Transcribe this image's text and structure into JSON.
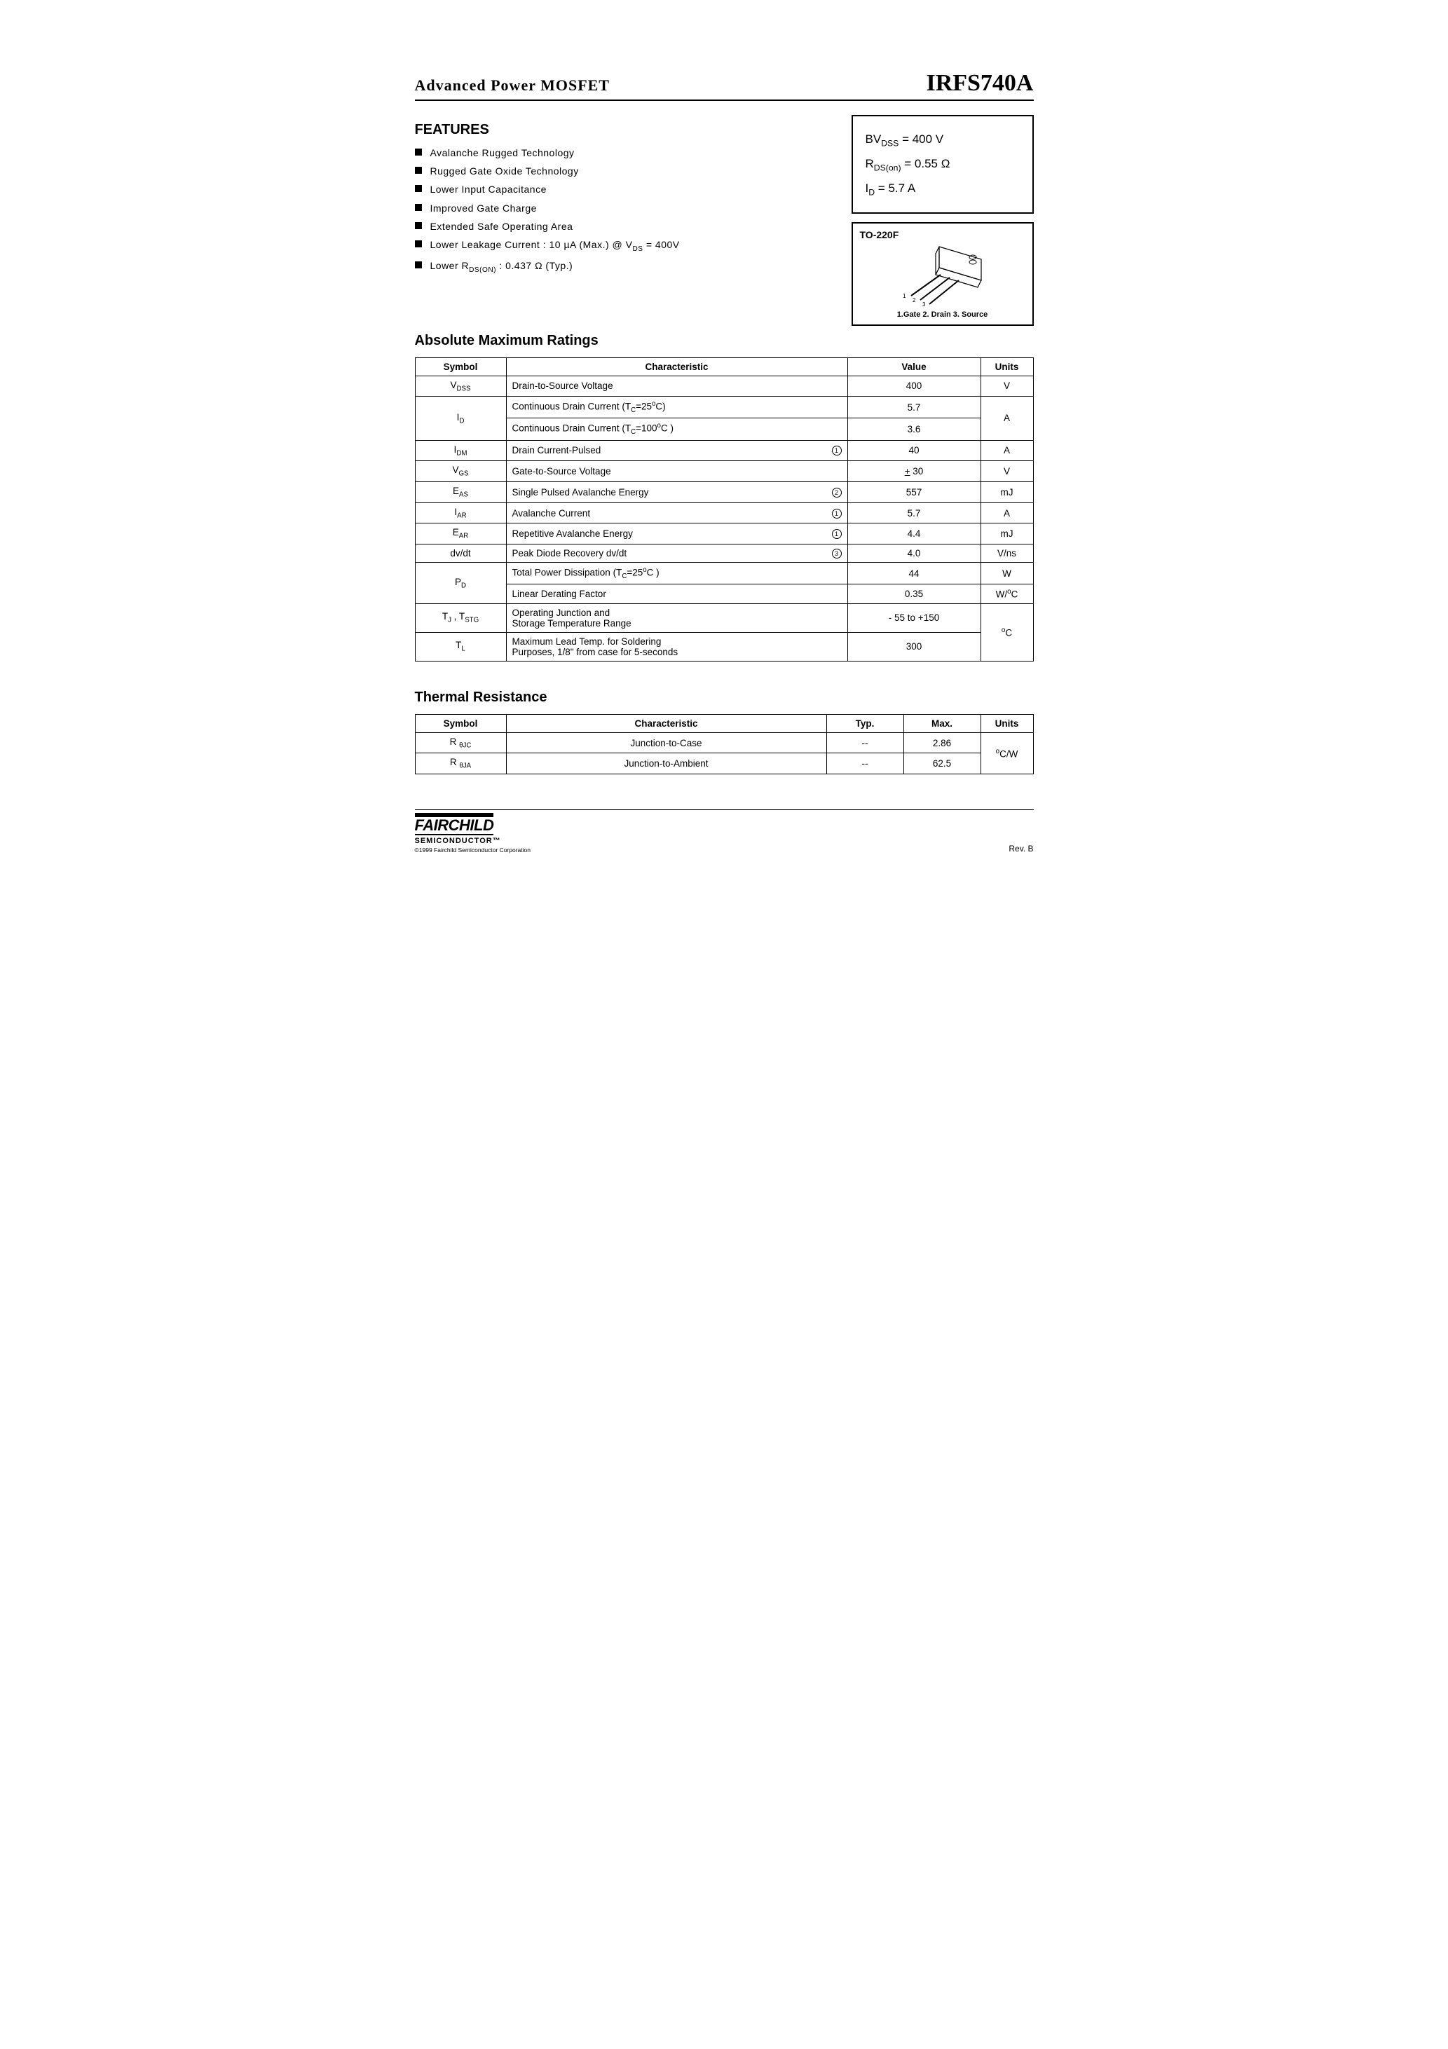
{
  "header": {
    "left": "Advanced  Power  MOSFET",
    "right": "IRFS740A"
  },
  "features": {
    "heading": "FEATURES",
    "items": [
      "Avalanche  Rugged  Technology",
      "Rugged  Gate  Oxide  Technology",
      "Lower  Input  Capacitance",
      "Improved  Gate  Charge",
      "Extended  Safe  Operating  Area",
      "Lower  Leakage  Current  :  10 µA (Max.)  @   V<sub>DS</sub> = 400V",
      "Lower  R<sub>DS(ON)</sub>  :  0.437 Ω (Typ.)"
    ]
  },
  "spec_box": {
    "lines": [
      "BV<sub>DSS</sub>  =  400 V",
      "R<sub>DS(on)</sub>  =  0.55  Ω",
      "I<sub>D</sub>  =  5.7 A"
    ]
  },
  "package": {
    "title": "TO-220F",
    "pins": "1.Gate  2. Drain  3. Source"
  },
  "abs_max": {
    "heading": "Absolute  Maximum  Ratings",
    "columns": [
      "Symbol",
      "Characteristic",
      "Value",
      "Units"
    ],
    "rows": [
      {
        "symbol": "V<sub>DSS</sub>",
        "char": "Drain-to-Source  Voltage",
        "note": "",
        "value": "400",
        "units": "V",
        "sym_rowspan": 1,
        "units_rowspan": 1
      },
      {
        "symbol": "I<sub>D</sub>",
        "char": "Continuous  Drain  Current  (T<sub>C</sub>=25<sup>o</sup>C)",
        "note": "",
        "value": "5.7",
        "units": "A",
        "sym_rowspan": 2,
        "units_rowspan": 2
      },
      {
        "symbol": "",
        "char": "Continuous  Drain  Current  (T<sub>C</sub>=100<sup>o</sup>C )",
        "note": "",
        "value": "3.6",
        "units": "",
        "sym_rowspan": 0,
        "units_rowspan": 0
      },
      {
        "symbol": "I<sub>DM</sub>",
        "char": "Drain  Current-Pulsed",
        "note": "1",
        "value": "40",
        "units": "A",
        "sym_rowspan": 1,
        "units_rowspan": 1
      },
      {
        "symbol": "V<sub>GS</sub>",
        "char": "Gate-to-Source  Voltage",
        "note": "",
        "value": "<u>+</u> 30",
        "units": "V",
        "sym_rowspan": 1,
        "units_rowspan": 1
      },
      {
        "symbol": "E<sub>AS</sub>",
        "char": "Single  Pulsed  Avalanche  Energy",
        "note": "2",
        "value": "557",
        "units": "mJ",
        "sym_rowspan": 1,
        "units_rowspan": 1
      },
      {
        "symbol": "I<sub>AR</sub>",
        "char": "Avalanche  Current",
        "note": "1",
        "value": "5.7",
        "units": "A",
        "sym_rowspan": 1,
        "units_rowspan": 1
      },
      {
        "symbol": "E<sub>AR</sub>",
        "char": "Repetitive  Avalanche  Energy",
        "note": "1",
        "value": "4.4",
        "units": "mJ",
        "sym_rowspan": 1,
        "units_rowspan": 1
      },
      {
        "symbol": "dv/dt",
        "char": "Peak  Diode  Recovery  dv/dt",
        "note": "3",
        "value": "4.0",
        "units": "V/ns",
        "sym_rowspan": 1,
        "units_rowspan": 1
      },
      {
        "symbol": "P<sub>D</sub>",
        "char": "Total  Power  Dissipation  (T<sub>C</sub>=25<sup>o</sup>C )",
        "note": "",
        "value": "44",
        "units": "W",
        "sym_rowspan": 2,
        "units_rowspan": 1
      },
      {
        "symbol": "",
        "char": "Linear  Derating  Factor",
        "note": "",
        "value": "0.35",
        "units": "W/<sup>o</sup>C",
        "sym_rowspan": 0,
        "units_rowspan": 1
      },
      {
        "symbol": "T<sub>J</sub>  , T<sub>STG</sub>",
        "char": "Operating  Junction  and<br>Storage  Temperature  Range",
        "note": "",
        "value": "- 55  to  +150",
        "units": "<sup>o</sup>C",
        "sym_rowspan": 1,
        "units_rowspan": 2
      },
      {
        "symbol": "T<sub>L</sub>",
        "char": "Maximum  Lead  Temp.  for  Soldering<br>Purposes,  1/8\" from  case  for  5-seconds",
        "note": "",
        "value": "300",
        "units": "",
        "sym_rowspan": 1,
        "units_rowspan": 0
      }
    ]
  },
  "thermal": {
    "heading": "Thermal  Resistance",
    "columns": [
      "Symbol",
      "Characteristic",
      "Typ.",
      "Max.",
      "Units"
    ],
    "rows": [
      {
        "symbol": "R <sub>θJC</sub>",
        "char": "Junction-to-Case",
        "typ": "--",
        "max": "2.86",
        "units": "<sup>o</sup>C/W",
        "units_rowspan": 2
      },
      {
        "symbol": "R <sub>θJA</sub>",
        "char": "Junction-to-Ambient",
        "typ": "--",
        "max": "62.5",
        "units": "",
        "units_rowspan": 0
      }
    ]
  },
  "footer": {
    "logo": "FAIRCHILD",
    "sub": "SEMICONDUCTOR™",
    "copyright": "©1999 Fairchild Semiconductor Corporation",
    "rev": "Rev. B"
  }
}
